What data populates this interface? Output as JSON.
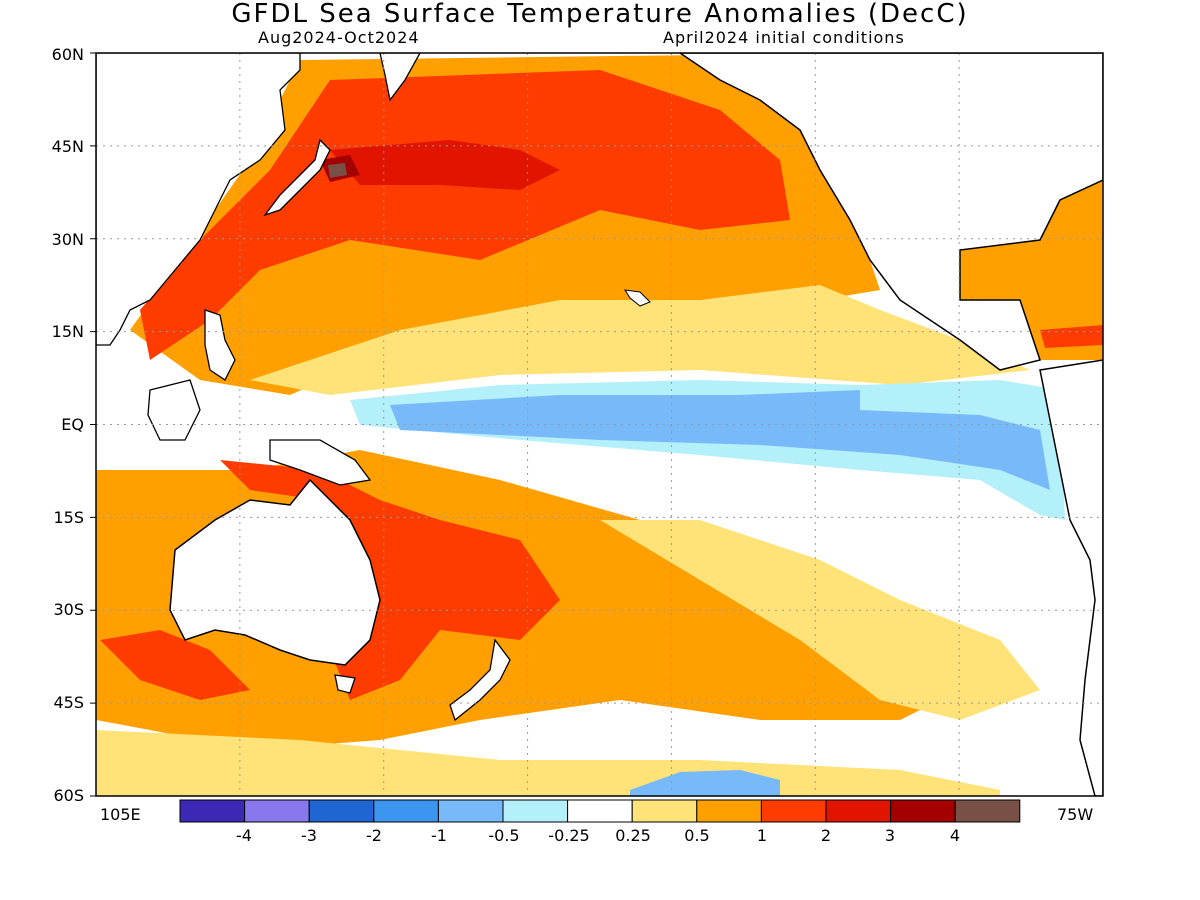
{
  "header": {
    "title": "GFDL Sea Surface Temperature Anomalies (DecC)",
    "period": "Aug2024-Oct2024",
    "init": "April2024 initial conditions"
  },
  "axes": {
    "lat_labels": [
      "60N",
      "45N",
      "30N",
      "15N",
      "EQ",
      "15S",
      "30S",
      "45S",
      "60S"
    ],
    "lon_west_label": "105E",
    "lon_east_label": "75W",
    "lat_range": [
      -60,
      60
    ],
    "lon_range": [
      "105E",
      "75W"
    ],
    "grid": "dotted"
  },
  "colorbar": {
    "labels": [
      "-4",
      "-3",
      "-2",
      "-1",
      "-0.5",
      "-0.25",
      "0.25",
      "0.5",
      "1",
      "2",
      "3",
      "4"
    ],
    "colors": [
      "#3b28b4",
      "#8878ee",
      "#1e66d2",
      "#3c96f0",
      "#78b9fa",
      "#b4f0fa",
      "#ffffff",
      "#ffe278",
      "#ffa000",
      "#ff3c00",
      "#e11400",
      "#a50000",
      "#785046"
    ]
  }
}
